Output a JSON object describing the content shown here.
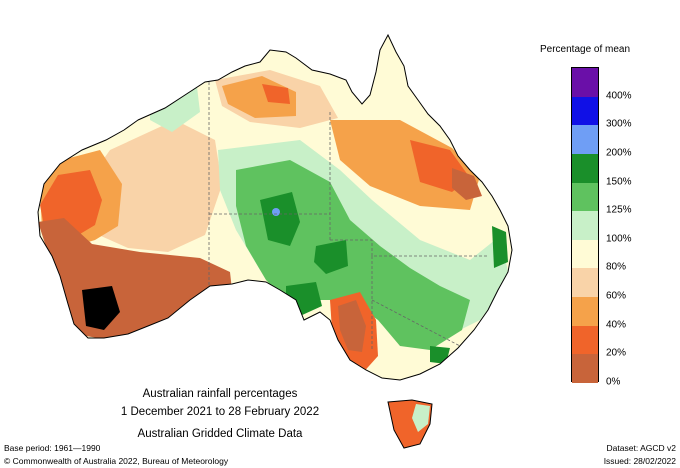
{
  "map": {
    "title": "Australian rainfall percentages",
    "period": "1 December 2021 to 28 February 2022",
    "dataset_name": "Australian Gridded Climate Data"
  },
  "legend": {
    "title": "Percentage of mean",
    "classes": [
      {
        "label": "400%",
        "color": "#6a0fa8"
      },
      {
        "label": "300%",
        "color": "#1010e6"
      },
      {
        "label": "200%",
        "color": "#6f9ef5"
      },
      {
        "label": "150%",
        "color": "#1a8f2a"
      },
      {
        "label": "125%",
        "color": "#5fc25f"
      },
      {
        "label": "100%",
        "color": "#c8f0c8"
      },
      {
        "label": "80%",
        "color": "#fffbd6"
      },
      {
        "label": "60%",
        "color": "#f9d3a8"
      },
      {
        "label": "40%",
        "color": "#f5a24a"
      },
      {
        "label": "20%",
        "color": "#f0642a"
      },
      {
        "label": "0%",
        "color": "#c8643a"
      }
    ]
  },
  "footer": {
    "base_period": "Base period: 1961—1990",
    "dataset": "Dataset: AGCD v2",
    "copyright": "© Commonwealth of Australia 2022, Bureau of Meteorology",
    "issued": "Issued: 28/02/2022"
  }
}
